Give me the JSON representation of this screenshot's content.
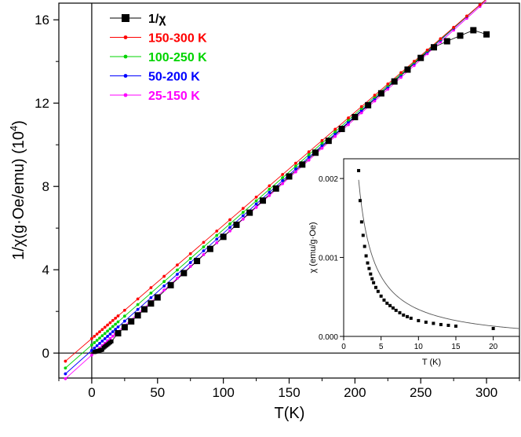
{
  "chart_data": [
    {
      "type": "line",
      "xlabel": "T(K)",
      "ylabel": "1/χ(g·Oe/emu) (10⁴)",
      "ylabel_main": "1/χ(g·Oe/emu) (10",
      "ylabel_exp": "4",
      "ylabel_close": ")",
      "xlim": [
        -25,
        325
      ],
      "ylim": [
        -1.2,
        16.8
      ],
      "xticks": [
        0,
        50,
        100,
        150,
        200,
        250,
        300
      ],
      "yticks": [
        0,
        4,
        8,
        12,
        16
      ],
      "reference_lines": {
        "x": 0,
        "y": 0
      },
      "legend_position": "top-left",
      "series": [
        {
          "name": "1/χ",
          "color": "#000000",
          "marker": "square",
          "x": [
            2,
            2.5,
            3,
            3.5,
            4,
            4.5,
            5,
            5.5,
            6,
            6.5,
            7,
            7.5,
            8,
            9,
            10,
            11,
            12,
            13,
            14,
            15,
            20,
            25,
            30,
            35,
            40,
            45,
            50,
            60,
            70,
            80,
            90,
            100,
            110,
            120,
            130,
            140,
            150,
            160,
            170,
            180,
            190,
            200,
            210,
            220,
            230,
            240,
            250,
            260,
            270,
            280,
            290,
            300
          ],
          "y": [
            0.048,
            0.058,
            0.068,
            0.078,
            0.088,
            0.097,
            0.107,
            0.116,
            0.125,
            0.134,
            0.144,
            0.153,
            0.162,
            0.26,
            0.31,
            0.36,
            0.41,
            0.46,
            0.51,
            0.56,
            0.95,
            1.24,
            1.52,
            1.81,
            2.1,
            2.38,
            2.67,
            3.26,
            3.84,
            4.42,
            5.0,
            5.58,
            6.16,
            6.74,
            7.32,
            7.9,
            8.48,
            9.05,
            9.62,
            10.19,
            10.76,
            11.33,
            11.9,
            12.47,
            13.04,
            13.61,
            14.17,
            14.68,
            14.97,
            15.24,
            15.5,
            15.3
          ]
        },
        {
          "name": "150-300 K",
          "color": "#ff0000",
          "fit": {
            "slope": 0.05433,
            "intercept": 0.696
          },
          "x_range": [
            -20,
            300
          ]
        },
        {
          "name": "100-250 K",
          "color": "#00d400",
          "fit": {
            "slope": 0.05537,
            "intercept": 0.389
          },
          "x_range": [
            -20,
            300
          ]
        },
        {
          "name": "50-200 K",
          "color": "#0000ff",
          "fit": {
            "slope": 0.05623,
            "intercept": 0.127
          },
          "x_range": [
            -20,
            300
          ]
        },
        {
          "name": "25-150 K",
          "color": "#ff00ff",
          "fit": {
            "slope": 0.05673,
            "intercept": -0.096
          },
          "x_range": [
            -20,
            300
          ]
        }
      ]
    },
    {
      "type": "line",
      "inset": true,
      "xlabel": "T (K)",
      "ylabel": "χ (emu/g·Oe)",
      "xlim": [
        0,
        23.5
      ],
      "ylim": [
        0,
        0.00225
      ],
      "xticks": [
        0,
        5,
        10,
        15,
        20
      ],
      "yticks": [
        0.0,
        0.001,
        0.002
      ],
      "ytick_labels": [
        "0.000",
        "0.001",
        "0.002"
      ],
      "series": [
        {
          "name": "χ",
          "color": "#000000",
          "marker": "square",
          "x": [
            2,
            2.2,
            2.4,
            2.6,
            2.8,
            3,
            3.2,
            3.4,
            3.6,
            3.8,
            4,
            4.3,
            4.6,
            5,
            5.4,
            5.8,
            6.2,
            6.6,
            7,
            7.5,
            8,
            8.5,
            9,
            10,
            11,
            12,
            13,
            14,
            15,
            20
          ],
          "y": [
            0.0021,
            0.00172,
            0.00145,
            0.00128,
            0.00114,
            0.00102,
            0.00093,
            0.00086,
            0.00079,
            0.00073,
            0.00068,
            0.00062,
            0.00057,
            0.00051,
            0.00046,
            0.00042,
            0.00039,
            0.00036,
            0.00033,
            0.0003,
            0.00027,
            0.00025,
            0.00023,
            0.0002,
            0.00018,
            0.000165,
            0.00015,
            0.00014,
            0.00013,
            0.0001
          ]
        }
      ]
    }
  ]
}
